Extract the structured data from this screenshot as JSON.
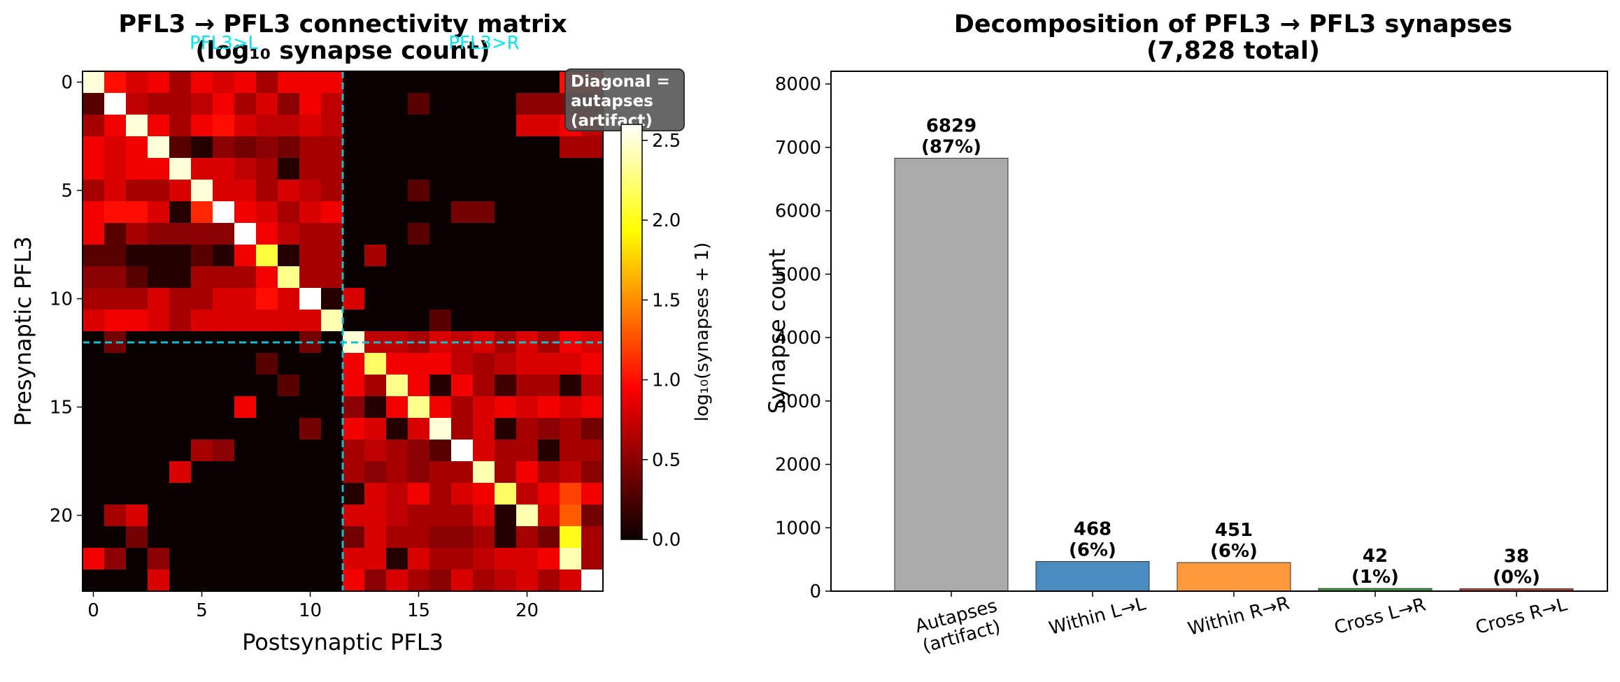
{
  "chart_data": [
    {
      "type": "heatmap",
      "title_line1": "PFL3 → PFL3 connectivity matrix",
      "title_line2": "(log₁₀ synapse count)",
      "xlabel": "Postsynaptic PFL3",
      "ylabel": "Presynaptic PFL3",
      "x_ticks": [
        0,
        5,
        10,
        15,
        20
      ],
      "y_ticks": [
        0,
        5,
        10,
        15,
        20
      ],
      "n": 24,
      "split_index": 12,
      "group_labels": [
        "PFL3>L",
        "PFL3>R"
      ],
      "group_label_color": "#00e5ee",
      "divider_color": "#17becf",
      "annotation": [
        "Diagonal =",
        "autapses",
        "(artifact)"
      ],
      "colorbar": {
        "label": "log₁₀(synapses + 1)",
        "ticks": [
          0.0,
          0.5,
          1.0,
          1.5,
          2.0,
          2.5
        ],
        "vmin": 0.0,
        "vmax": 2.6,
        "cmap": "hot"
      },
      "values": [
        [
          2.5,
          1.0,
          0.8,
          0.9,
          0.6,
          0.9,
          0.8,
          0.9,
          0.6,
          0.9,
          0.9,
          0.9,
          0,
          0,
          0,
          0,
          0,
          0,
          0,
          0,
          0,
          0,
          1.0,
          1.0
        ],
        [
          0.3,
          2.6,
          0.7,
          0.6,
          0.6,
          0.7,
          0.9,
          0.6,
          0.8,
          0.5,
          0.9,
          0.7,
          0,
          0,
          0,
          0.3,
          0,
          0,
          0,
          0,
          0.5,
          0.5,
          0.5,
          0.5
        ],
        [
          0.6,
          0.9,
          2.5,
          0.9,
          0.6,
          0.9,
          1.0,
          0.8,
          0.7,
          0.7,
          0.8,
          0.7,
          0,
          0,
          0,
          0,
          0,
          0,
          0,
          0,
          0.8,
          0.8,
          0.9,
          0.7
        ],
        [
          0.9,
          0.8,
          0.9,
          2.5,
          0.3,
          0.1,
          0.5,
          0.4,
          0.5,
          0.4,
          0.6,
          0.6,
          0,
          0,
          0,
          0,
          0,
          0,
          0,
          0,
          0,
          0,
          0.6,
          0.6
        ],
        [
          0.9,
          0.8,
          0.9,
          0.9,
          2.5,
          0.8,
          0.8,
          0.7,
          0.6,
          0.1,
          0.6,
          0.6,
          0,
          0,
          0,
          0,
          0,
          0,
          0,
          0,
          0,
          0,
          0,
          0
        ],
        [
          0.6,
          0.8,
          0.6,
          0.6,
          0.8,
          2.5,
          0.8,
          0.8,
          0.6,
          0.8,
          0.7,
          0.6,
          0,
          0,
          0,
          0.3,
          0,
          0,
          0,
          0,
          0,
          0,
          0,
          0
        ],
        [
          0.9,
          1.0,
          1.0,
          0.8,
          0.1,
          1.1,
          2.6,
          0.9,
          0.8,
          0.6,
          0.8,
          0.9,
          0,
          0,
          0,
          0,
          0,
          0.4,
          0.4,
          0,
          0,
          0,
          0,
          0
        ],
        [
          0.9,
          0.3,
          0.6,
          0.5,
          0.5,
          0.5,
          0.5,
          2.6,
          0.9,
          0.7,
          0.6,
          0.6,
          0,
          0,
          0,
          0.3,
          0,
          0,
          0,
          0,
          0,
          0,
          0,
          0
        ],
        [
          0.3,
          0.3,
          0.1,
          0.1,
          0.1,
          0.3,
          0.1,
          0.9,
          2.1,
          0.1,
          0.6,
          0.6,
          0,
          0.6,
          0,
          0,
          0,
          0,
          0,
          0,
          0,
          0,
          0,
          0
        ],
        [
          0.5,
          0.5,
          0.3,
          0.1,
          0.1,
          0.6,
          0.6,
          0.6,
          0.9,
          2.3,
          0.6,
          0.6,
          0,
          0,
          0,
          0,
          0,
          0,
          0,
          0,
          0,
          0,
          0,
          0
        ],
        [
          0.6,
          0.6,
          0.6,
          0.8,
          0.6,
          0.6,
          0.8,
          0.8,
          1.0,
          0.8,
          2.6,
          0.1,
          0.8,
          0,
          0,
          0,
          0,
          0,
          0,
          0,
          0,
          0,
          0,
          0
        ],
        [
          0.8,
          0.9,
          0.9,
          0.8,
          0.6,
          0.8,
          0.8,
          0.8,
          0.8,
          0.8,
          0.8,
          2.4,
          0,
          0,
          0,
          0,
          0.3,
          0,
          0,
          0,
          0,
          0,
          0,
          0
        ],
        [
          0,
          0.4,
          0,
          0,
          0,
          0,
          0,
          0,
          0,
          0,
          0.4,
          0,
          2.5,
          0.7,
          0.7,
          0.6,
          0.8,
          0.7,
          0.8,
          0.6,
          0.8,
          0.6,
          0.9,
          0.8
        ],
        [
          0,
          0,
          0,
          0,
          0,
          0,
          0,
          0,
          0.3,
          0,
          0,
          0,
          0.9,
          2.2,
          0.9,
          0.9,
          0.9,
          0.7,
          0.6,
          0.7,
          0.8,
          0.8,
          0.8,
          0.9
        ],
        [
          0,
          0,
          0,
          0,
          0,
          0,
          0,
          0,
          0,
          0.3,
          0,
          0,
          0.9,
          0.6,
          2.3,
          0.9,
          0.1,
          0.9,
          0.6,
          0.2,
          0.6,
          0.6,
          0.1,
          0.7
        ],
        [
          0,
          0,
          0,
          0,
          0,
          0,
          0,
          0.9,
          0,
          0,
          0,
          0,
          0.5,
          0.1,
          0.9,
          2.3,
          0.9,
          0.6,
          0.8,
          0.9,
          0.8,
          0.9,
          0.8,
          0.9
        ],
        [
          0,
          0,
          0,
          0,
          0,
          0,
          0,
          0,
          0,
          0,
          0.4,
          0,
          0.9,
          0.8,
          0.1,
          0.8,
          2.5,
          0.6,
          0.8,
          0.1,
          0.6,
          0.5,
          0.6,
          0.4
        ],
        [
          0,
          0,
          0,
          0,
          0,
          0.6,
          0.5,
          0,
          0,
          0,
          0,
          0,
          0.6,
          0.7,
          0.6,
          0.5,
          0.3,
          2.6,
          0.8,
          0.6,
          0.6,
          0.1,
          0.6,
          0.6
        ],
        [
          0,
          0,
          0,
          0,
          0.8,
          0,
          0,
          0,
          0,
          0,
          0,
          0,
          0.6,
          0.5,
          0.6,
          0.5,
          0.6,
          0.6,
          2.4,
          0.6,
          0.9,
          0.6,
          0.7,
          0.5
        ],
        [
          0,
          0,
          0,
          0,
          0,
          0,
          0,
          0,
          0,
          0,
          0,
          0,
          0.1,
          0.8,
          0.7,
          0.9,
          0.6,
          0.8,
          0.9,
          2.2,
          0.7,
          0.9,
          1.2,
          0.9
        ],
        [
          0,
          0.6,
          0.8,
          0,
          0,
          0,
          0,
          0,
          0,
          0,
          0,
          0,
          0.8,
          0.8,
          0.7,
          0.6,
          0.6,
          0.6,
          0.8,
          0.1,
          2.4,
          0.8,
          1.3,
          0.4
        ],
        [
          0,
          0,
          0.4,
          0,
          0,
          0,
          0,
          0,
          0,
          0,
          0,
          0,
          0.4,
          0.8,
          0.6,
          0.6,
          0.5,
          0.5,
          0.6,
          0.1,
          0.6,
          0.4,
          2.0,
          0.6
        ],
        [
          0.9,
          0.5,
          0,
          0.5,
          0,
          0,
          0,
          0,
          0,
          0,
          0,
          0,
          0.8,
          0.8,
          0.1,
          0.8,
          0.6,
          0.6,
          0.7,
          0.8,
          0.8,
          0.9,
          2.4,
          0.6
        ],
        [
          0,
          0,
          0,
          0.8,
          0,
          0,
          0,
          0,
          0,
          0,
          0,
          0,
          0.9,
          0.5,
          0.8,
          0.6,
          0.5,
          0.8,
          0.6,
          0.7,
          0.8,
          0.6,
          0.8,
          2.6
        ]
      ]
    },
    {
      "type": "bar",
      "title_line1": "Decomposition of PFL3 → PFL3 synapses",
      "title_line2": "(7,828 total)",
      "xlabel": "",
      "ylabel": "Synapse count",
      "ylim": [
        0,
        8200
      ],
      "y_ticks": [
        0,
        1000,
        2000,
        3000,
        4000,
        5000,
        6000,
        7000,
        8000
      ],
      "categories": [
        [
          "Autapses",
          "(artifact)"
        ],
        [
          "Within L→L"
        ],
        [
          "Within R→R"
        ],
        [
          "Cross L→R"
        ],
        [
          "Cross R→L"
        ]
      ],
      "values": [
        6829,
        468,
        451,
        42,
        38
      ],
      "percent_labels": [
        "(87%)",
        "(6%)",
        "(6%)",
        "(1%)",
        "(0%)"
      ],
      "colors": [
        "#aaaaaa",
        "#4a8cc0",
        "#ff9a3c",
        "#3a9d3a",
        "#c23b3b"
      ]
    }
  ]
}
